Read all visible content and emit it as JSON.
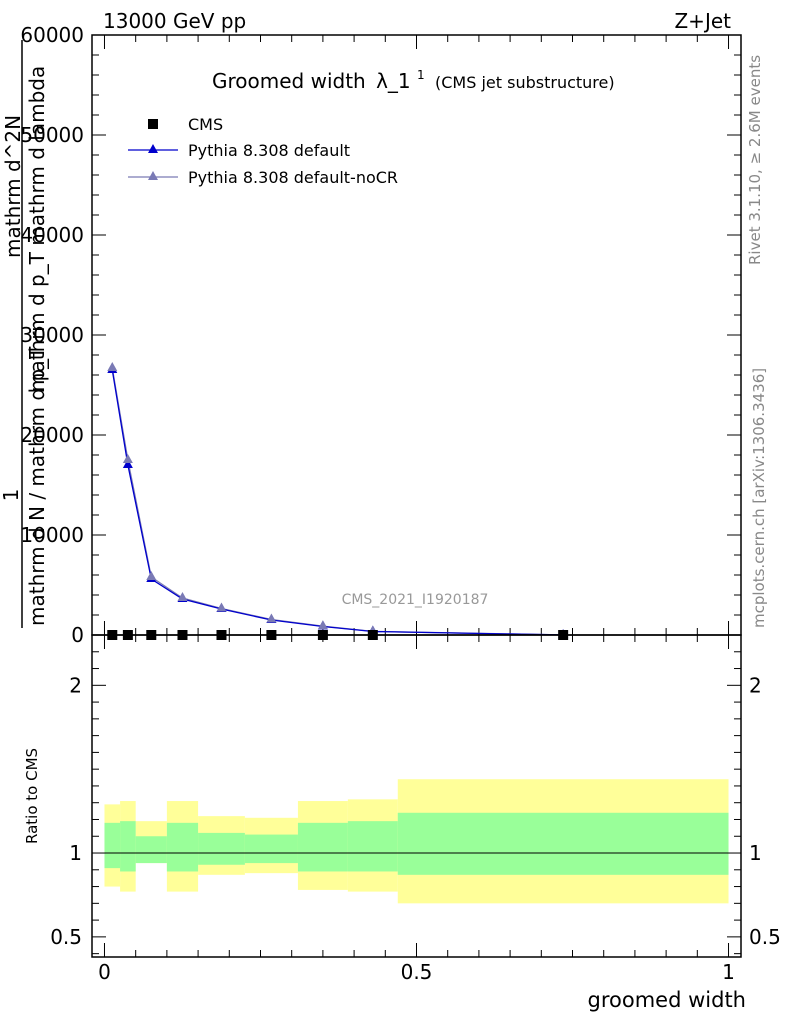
{
  "header": {
    "energy_label": "13000 GeV pp",
    "process_label": "Z+Jet"
  },
  "side_labels": {
    "rivet": "Rivet 3.1.10, ≥ 2.6M events",
    "mcplots": "mcplots.cern.ch [arXiv:1306.3436]"
  },
  "chart_data": [
    {
      "type": "line",
      "title": "Groomed width",
      "title_symbol": "λ_1",
      "title_superscript": "1",
      "subtitle": "(CMS jet substructure)",
      "analysis_tag": "CMS_2021_I1920187",
      "ylabel_lines": [
        "1",
        "mathrm d N / mathrm d p_T",
        "mathrm d^2N",
        "mathrm d p_T mathrm d lambda"
      ],
      "xlim": [
        -0.02,
        1.02
      ],
      "ylim": [
        0,
        60000
      ],
      "yticks": [
        {
          "value": 0,
          "label": "0"
        },
        {
          "value": 10000,
          "label": "10000"
        },
        {
          "value": 20000,
          "label": "20000"
        },
        {
          "value": 30000,
          "label": "30000"
        },
        {
          "value": 40000,
          "label": "40000"
        },
        {
          "value": 50000,
          "label": "50000"
        },
        {
          "value": 60000,
          "label": "60000"
        }
      ],
      "legend": [
        "CMS",
        "Pythia 8.308 default",
        "Pythia 8.308 default-noCR"
      ],
      "series": [
        {
          "name": "CMS",
          "marker": "square",
          "color": "#000000",
          "x": [
            0.0125,
            0.0375,
            0.075,
            0.125,
            0.1875,
            0.2675,
            0.35,
            0.43,
            0.735
          ],
          "values": [
            0,
            0,
            0,
            0,
            0,
            0,
            0,
            0,
            0
          ]
        },
        {
          "name": "Pythia 8.308 default",
          "marker": "triangle",
          "color": "#0000cc",
          "x": [
            0.0125,
            0.0375,
            0.075,
            0.125,
            0.1875,
            0.2675,
            0.35,
            0.43,
            0.735
          ],
          "values": [
            26500,
            17000,
            5600,
            3600,
            2600,
            1500,
            850,
            350,
            5
          ]
        },
        {
          "name": "Pythia 8.308 default-noCR",
          "marker": "triangle",
          "color": "#7a7ab5",
          "x": [
            0.0125,
            0.0375,
            0.075,
            0.125,
            0.1875,
            0.2675,
            0.35,
            0.43,
            0.735
          ],
          "values": [
            26700,
            17500,
            5800,
            3700,
            2650,
            1550,
            880,
            360,
            5
          ]
        }
      ]
    },
    {
      "type": "area",
      "ylabel": "Ratio to CMS",
      "xlabel": "groomed width",
      "xlim": [
        -0.02,
        1.02
      ],
      "ylim": [
        0.38,
        2.3
      ],
      "xticks": [
        {
          "value": 0,
          "label": "0"
        },
        {
          "value": 0.5,
          "label": "0.5"
        },
        {
          "value": 1,
          "label": "1"
        }
      ],
      "yticks": [
        {
          "value": 0.5,
          "label": "0.5"
        },
        {
          "value": 1,
          "label": "1"
        },
        {
          "value": 2,
          "label": "2"
        }
      ],
      "colors": {
        "inner_band": "#99ff99",
        "outer_band": "#ffff99"
      },
      "bins": [
        {
          "x0": 0.0,
          "x1": 0.025,
          "outer": [
            0.8,
            1.29
          ],
          "inner": [
            0.91,
            1.18
          ]
        },
        {
          "x0": 0.025,
          "x1": 0.05,
          "outer": [
            0.77,
            1.31
          ],
          "inner": [
            0.89,
            1.19
          ]
        },
        {
          "x0": 0.05,
          "x1": 0.1,
          "outer": [
            0.94,
            1.19
          ],
          "inner": [
            0.94,
            1.1
          ]
        },
        {
          "x0": 0.1,
          "x1": 0.15,
          "outer": [
            0.77,
            1.31
          ],
          "inner": [
            0.89,
            1.18
          ]
        },
        {
          "x0": 0.15,
          "x1": 0.225,
          "outer": [
            0.87,
            1.22
          ],
          "inner": [
            0.93,
            1.12
          ]
        },
        {
          "x0": 0.225,
          "x1": 0.31,
          "outer": [
            0.88,
            1.21
          ],
          "inner": [
            0.94,
            1.11
          ]
        },
        {
          "x0": 0.31,
          "x1": 0.39,
          "outer": [
            0.78,
            1.31
          ],
          "inner": [
            0.89,
            1.18
          ]
        },
        {
          "x0": 0.39,
          "x1": 0.47,
          "outer": [
            0.77,
            1.32
          ],
          "inner": [
            0.89,
            1.19
          ]
        },
        {
          "x0": 0.47,
          "x1": 1.0,
          "outer": [
            0.7,
            1.44
          ],
          "inner": [
            0.87,
            1.24
          ]
        }
      ]
    }
  ]
}
